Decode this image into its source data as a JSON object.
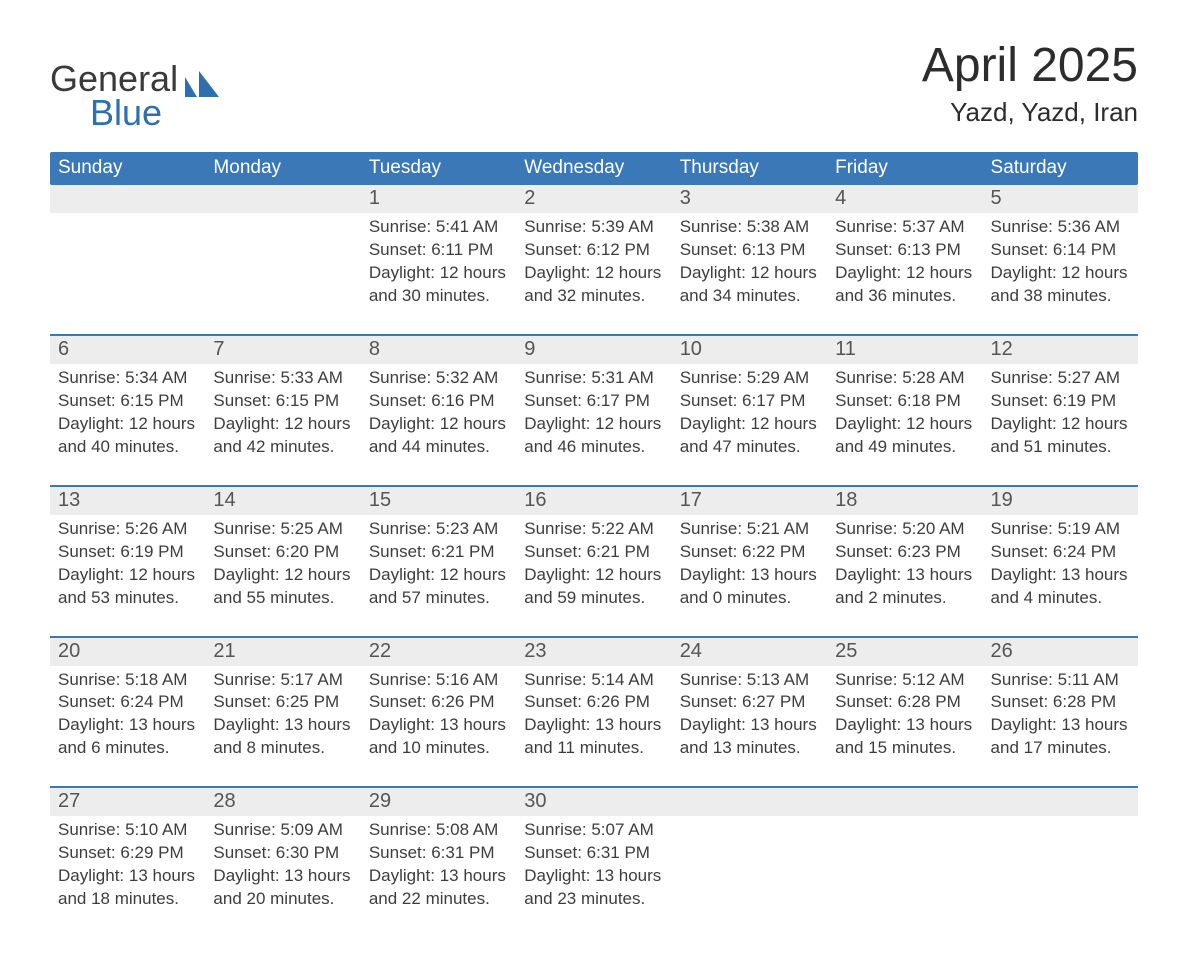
{
  "logo": {
    "word1": "General",
    "word2": "Blue",
    "icon_color": "#2f6fb0",
    "text_color": "#3a3a3a"
  },
  "title": "April 2025",
  "location": "Yazd, Yazd, Iran",
  "colors": {
    "header_bg": "#3a78b8",
    "header_fg": "#ffffff",
    "row_sep": "#3a78b8",
    "daynum_bg": "#ededed",
    "daynum_fg": "#555555",
    "body_text": "#3d3d3d",
    "background": "#ffffff"
  },
  "typography": {
    "title_fontsize": 48,
    "location_fontsize": 26,
    "dow_fontsize": 19,
    "daynum_fontsize": 20,
    "body_fontsize": 17
  },
  "days_of_week": [
    "Sunday",
    "Monday",
    "Tuesday",
    "Wednesday",
    "Thursday",
    "Friday",
    "Saturday"
  ],
  "weeks": [
    [
      null,
      null,
      {
        "n": "1",
        "sunrise": "Sunrise: 5:41 AM",
        "sunset": "Sunset: 6:11 PM",
        "d1": "Daylight: 12 hours",
        "d2": "and 30 minutes."
      },
      {
        "n": "2",
        "sunrise": "Sunrise: 5:39 AM",
        "sunset": "Sunset: 6:12 PM",
        "d1": "Daylight: 12 hours",
        "d2": "and 32 minutes."
      },
      {
        "n": "3",
        "sunrise": "Sunrise: 5:38 AM",
        "sunset": "Sunset: 6:13 PM",
        "d1": "Daylight: 12 hours",
        "d2": "and 34 minutes."
      },
      {
        "n": "4",
        "sunrise": "Sunrise: 5:37 AM",
        "sunset": "Sunset: 6:13 PM",
        "d1": "Daylight: 12 hours",
        "d2": "and 36 minutes."
      },
      {
        "n": "5",
        "sunrise": "Sunrise: 5:36 AM",
        "sunset": "Sunset: 6:14 PM",
        "d1": "Daylight: 12 hours",
        "d2": "and 38 minutes."
      }
    ],
    [
      {
        "n": "6",
        "sunrise": "Sunrise: 5:34 AM",
        "sunset": "Sunset: 6:15 PM",
        "d1": "Daylight: 12 hours",
        "d2": "and 40 minutes."
      },
      {
        "n": "7",
        "sunrise": "Sunrise: 5:33 AM",
        "sunset": "Sunset: 6:15 PM",
        "d1": "Daylight: 12 hours",
        "d2": "and 42 minutes."
      },
      {
        "n": "8",
        "sunrise": "Sunrise: 5:32 AM",
        "sunset": "Sunset: 6:16 PM",
        "d1": "Daylight: 12 hours",
        "d2": "and 44 minutes."
      },
      {
        "n": "9",
        "sunrise": "Sunrise: 5:31 AM",
        "sunset": "Sunset: 6:17 PM",
        "d1": "Daylight: 12 hours",
        "d2": "and 46 minutes."
      },
      {
        "n": "10",
        "sunrise": "Sunrise: 5:29 AM",
        "sunset": "Sunset: 6:17 PM",
        "d1": "Daylight: 12 hours",
        "d2": "and 47 minutes."
      },
      {
        "n": "11",
        "sunrise": "Sunrise: 5:28 AM",
        "sunset": "Sunset: 6:18 PM",
        "d1": "Daylight: 12 hours",
        "d2": "and 49 minutes."
      },
      {
        "n": "12",
        "sunrise": "Sunrise: 5:27 AM",
        "sunset": "Sunset: 6:19 PM",
        "d1": "Daylight: 12 hours",
        "d2": "and 51 minutes."
      }
    ],
    [
      {
        "n": "13",
        "sunrise": "Sunrise: 5:26 AM",
        "sunset": "Sunset: 6:19 PM",
        "d1": "Daylight: 12 hours",
        "d2": "and 53 minutes."
      },
      {
        "n": "14",
        "sunrise": "Sunrise: 5:25 AM",
        "sunset": "Sunset: 6:20 PM",
        "d1": "Daylight: 12 hours",
        "d2": "and 55 minutes."
      },
      {
        "n": "15",
        "sunrise": "Sunrise: 5:23 AM",
        "sunset": "Sunset: 6:21 PM",
        "d1": "Daylight: 12 hours",
        "d2": "and 57 minutes."
      },
      {
        "n": "16",
        "sunrise": "Sunrise: 5:22 AM",
        "sunset": "Sunset: 6:21 PM",
        "d1": "Daylight: 12 hours",
        "d2": "and 59 minutes."
      },
      {
        "n": "17",
        "sunrise": "Sunrise: 5:21 AM",
        "sunset": "Sunset: 6:22 PM",
        "d1": "Daylight: 13 hours",
        "d2": "and 0 minutes."
      },
      {
        "n": "18",
        "sunrise": "Sunrise: 5:20 AM",
        "sunset": "Sunset: 6:23 PM",
        "d1": "Daylight: 13 hours",
        "d2": "and 2 minutes."
      },
      {
        "n": "19",
        "sunrise": "Sunrise: 5:19 AM",
        "sunset": "Sunset: 6:24 PM",
        "d1": "Daylight: 13 hours",
        "d2": "and 4 minutes."
      }
    ],
    [
      {
        "n": "20",
        "sunrise": "Sunrise: 5:18 AM",
        "sunset": "Sunset: 6:24 PM",
        "d1": "Daylight: 13 hours",
        "d2": "and 6 minutes."
      },
      {
        "n": "21",
        "sunrise": "Sunrise: 5:17 AM",
        "sunset": "Sunset: 6:25 PM",
        "d1": "Daylight: 13 hours",
        "d2": "and 8 minutes."
      },
      {
        "n": "22",
        "sunrise": "Sunrise: 5:16 AM",
        "sunset": "Sunset: 6:26 PM",
        "d1": "Daylight: 13 hours",
        "d2": "and 10 minutes."
      },
      {
        "n": "23",
        "sunrise": "Sunrise: 5:14 AM",
        "sunset": "Sunset: 6:26 PM",
        "d1": "Daylight: 13 hours",
        "d2": "and 11 minutes."
      },
      {
        "n": "24",
        "sunrise": "Sunrise: 5:13 AM",
        "sunset": "Sunset: 6:27 PM",
        "d1": "Daylight: 13 hours",
        "d2": "and 13 minutes."
      },
      {
        "n": "25",
        "sunrise": "Sunrise: 5:12 AM",
        "sunset": "Sunset: 6:28 PM",
        "d1": "Daylight: 13 hours",
        "d2": "and 15 minutes."
      },
      {
        "n": "26",
        "sunrise": "Sunrise: 5:11 AM",
        "sunset": "Sunset: 6:28 PM",
        "d1": "Daylight: 13 hours",
        "d2": "and 17 minutes."
      }
    ],
    [
      {
        "n": "27",
        "sunrise": "Sunrise: 5:10 AM",
        "sunset": "Sunset: 6:29 PM",
        "d1": "Daylight: 13 hours",
        "d2": "and 18 minutes."
      },
      {
        "n": "28",
        "sunrise": "Sunrise: 5:09 AM",
        "sunset": "Sunset: 6:30 PM",
        "d1": "Daylight: 13 hours",
        "d2": "and 20 minutes."
      },
      {
        "n": "29",
        "sunrise": "Sunrise: 5:08 AM",
        "sunset": "Sunset: 6:31 PM",
        "d1": "Daylight: 13 hours",
        "d2": "and 22 minutes."
      },
      {
        "n": "30",
        "sunrise": "Sunrise: 5:07 AM",
        "sunset": "Sunset: 6:31 PM",
        "d1": "Daylight: 13 hours",
        "d2": "and 23 minutes."
      },
      null,
      null,
      null
    ]
  ]
}
